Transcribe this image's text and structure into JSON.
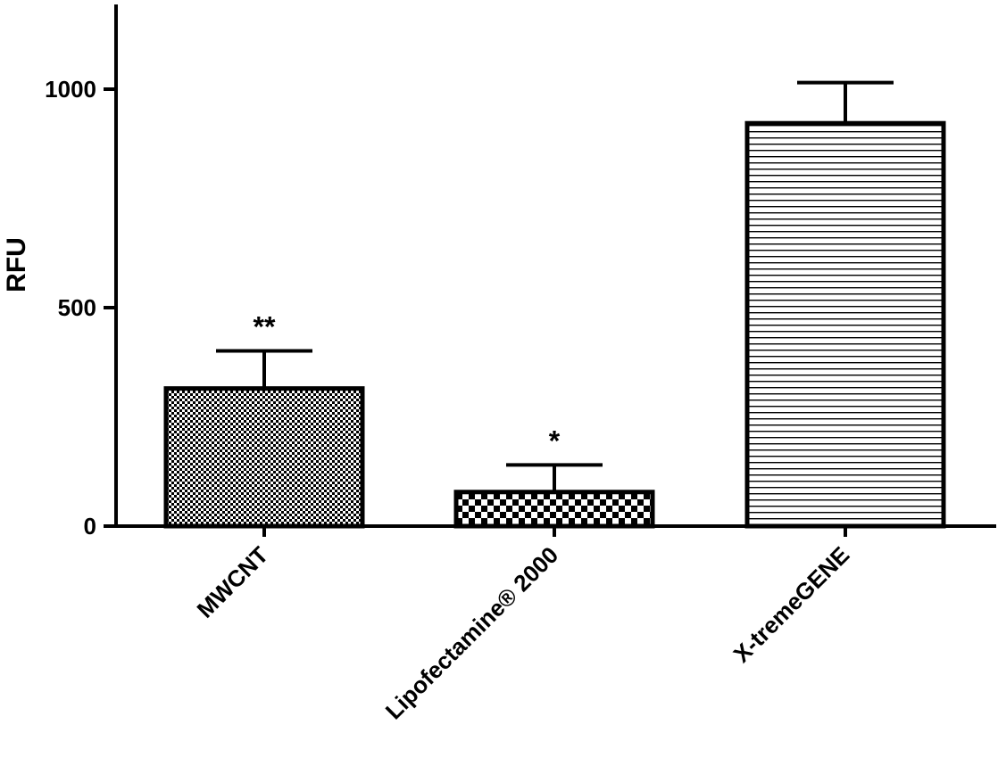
{
  "chart_data": {
    "type": "bar",
    "title": "",
    "xlabel": "",
    "ylabel": "RFU",
    "ylim": [
      0,
      1200
    ],
    "yticks": [
      0,
      500,
      1000
    ],
    "grid": false,
    "categories": [
      "MWCNT",
      "Lipofectamine® 2000",
      "X-tremeGENE"
    ],
    "values": [
      315,
      78,
      922
    ],
    "errors": [
      86,
      62,
      93
    ],
    "annotations": [
      "**",
      "*",
      ""
    ],
    "patterns": [
      "fine-check",
      "checkerboard",
      "horizontal-lines"
    ]
  }
}
